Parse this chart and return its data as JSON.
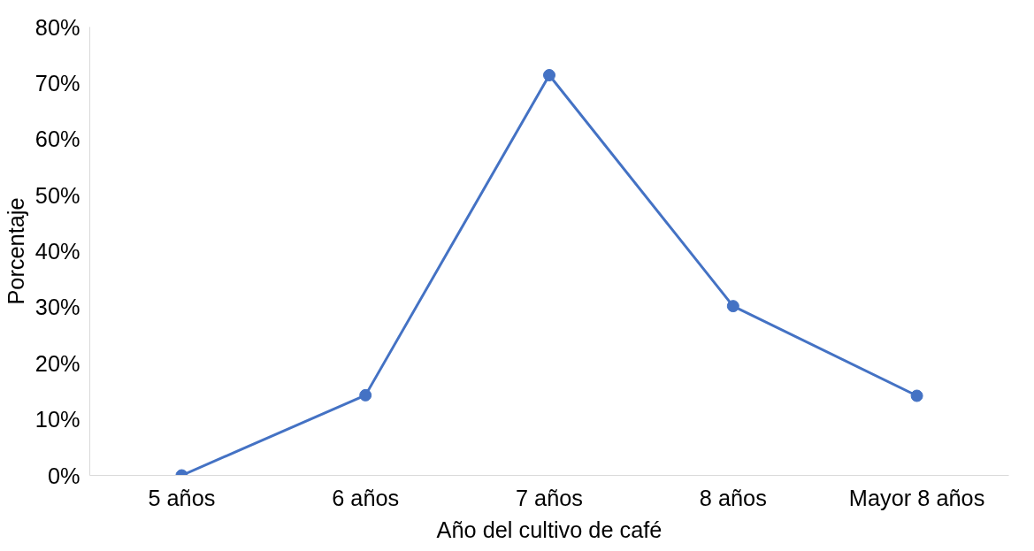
{
  "chart_data": {
    "type": "line",
    "xlabel": "Año del cultivo de café",
    "ylabel": "Porcentaje",
    "categories": [
      "5 años",
      "6 años",
      "7 años",
      "8 años",
      "Mayor 8 años"
    ],
    "series": [
      {
        "color": "#4472c4",
        "values": [
          0,
          14.3,
          71.4,
          30.2,
          14.2
        ]
      }
    ],
    "ylim": [
      0,
      80
    ],
    "yticks": [
      {
        "value": 0,
        "label": "0%"
      },
      {
        "value": 10,
        "label": "10%"
      },
      {
        "value": 20,
        "label": "20%"
      },
      {
        "value": 30,
        "label": "30%"
      },
      {
        "value": 40,
        "label": "40%"
      },
      {
        "value": 50,
        "label": "50%"
      },
      {
        "value": 60,
        "label": "60%"
      },
      {
        "value": 70,
        "label": "70%"
      },
      {
        "value": 80,
        "label": "80%"
      }
    ],
    "marker": "circle",
    "line_style": "solid",
    "grid": false
  }
}
